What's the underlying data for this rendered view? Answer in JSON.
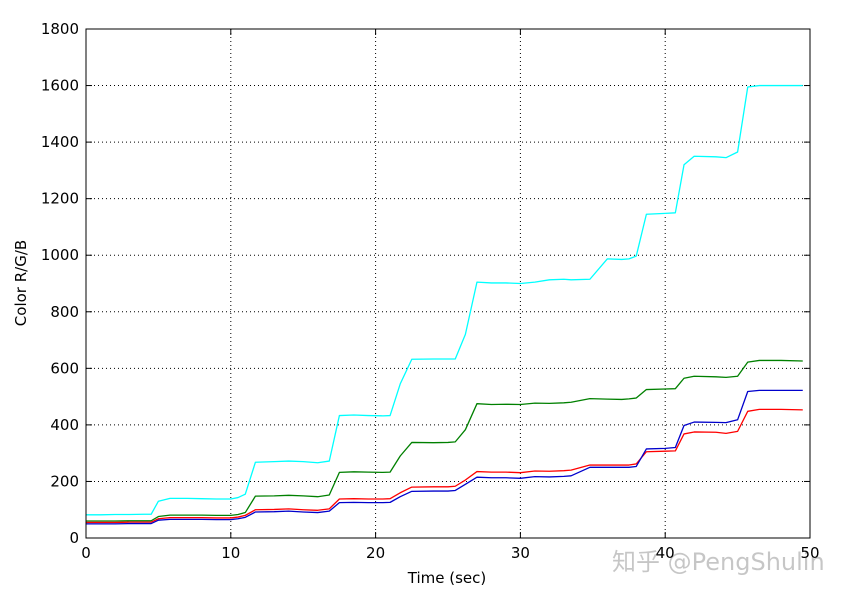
{
  "chart_data": {
    "type": "line",
    "xlabel": "Time (sec)",
    "ylabel": "Color R/G/B",
    "xlim": [
      0,
      50
    ],
    "ylim": [
      0,
      1800
    ],
    "xticks": [
      0,
      10,
      20,
      30,
      40,
      50
    ],
    "yticks": [
      0,
      200,
      400,
      600,
      800,
      1000,
      1200,
      1400,
      1600,
      1800
    ],
    "grid": true,
    "grid_style": "dotted",
    "x": [
      0,
      1,
      2,
      3,
      4,
      4.5,
      5,
      5.8,
      7,
      8,
      9,
      10,
      10.5,
      11,
      11.7,
      13,
      14,
      15,
      16,
      16.8,
      17.5,
      18.5,
      19.5,
      20.5,
      21,
      21.7,
      22.5,
      24,
      25,
      25.5,
      26.2,
      27,
      28,
      29,
      30,
      31,
      32,
      33,
      33.5,
      34.8,
      36,
      37,
      37.5,
      38,
      38.7,
      40,
      40.7,
      41.3,
      42,
      43.5,
      44.2,
      45,
      45.7,
      46.5,
      48,
      49.5
    ],
    "series": [
      {
        "color": "#00ffff",
        "values": [
          82,
          82,
          83,
          83,
          84,
          84,
          130,
          140,
          140,
          139,
          138,
          138,
          143,
          155,
          268,
          270,
          272,
          270,
          266,
          272,
          433,
          435,
          433,
          432,
          433,
          545,
          632,
          633,
          633,
          633,
          720,
          905,
          902,
          902,
          900,
          905,
          913,
          915,
          913,
          915,
          987,
          985,
          987,
          997,
          1145,
          1148,
          1150,
          1320,
          1350,
          1348,
          1345,
          1365,
          1595,
          1600,
          1600,
          1600
        ]
      },
      {
        "color": "#008000",
        "values": [
          60,
          60,
          60,
          61,
          61,
          61,
          76,
          81,
          81,
          81,
          80,
          80,
          83,
          90,
          148,
          149,
          151,
          149,
          146,
          152,
          232,
          234,
          233,
          232,
          233,
          290,
          338,
          337,
          338,
          340,
          383,
          475,
          472,
          473,
          472,
          477,
          476,
          478,
          480,
          493,
          491,
          490,
          492,
          495,
          525,
          527,
          528,
          565,
          572,
          570,
          568,
          572,
          622,
          628,
          628,
          626
        ]
      },
      {
        "color": "#ff0000",
        "values": [
          55,
          55,
          55,
          56,
          56,
          56,
          68,
          72,
          72,
          72,
          71,
          71,
          74,
          80,
          100,
          101,
          103,
          100,
          98,
          103,
          138,
          139,
          138,
          138,
          139,
          160,
          180,
          181,
          181,
          183,
          205,
          235,
          233,
          233,
          231,
          237,
          236,
          238,
          240,
          258,
          258,
          258,
          258,
          262,
          305,
          307,
          308,
          368,
          375,
          374,
          370,
          377,
          448,
          455,
          455,
          453
        ]
      },
      {
        "color": "#0000cc",
        "values": [
          50,
          50,
          50,
          51,
          51,
          51,
          63,
          66,
          66,
          66,
          65,
          65,
          68,
          73,
          92,
          93,
          95,
          92,
          90,
          95,
          125,
          126,
          125,
          125,
          126,
          146,
          165,
          166,
          166,
          168,
          190,
          215,
          213,
          213,
          211,
          217,
          216,
          218,
          220,
          250,
          250,
          250,
          250,
          253,
          315,
          317,
          320,
          398,
          410,
          409,
          408,
          418,
          518,
          522,
          522,
          522
        ]
      }
    ]
  },
  "watermark": "知乎 @PengShulin"
}
